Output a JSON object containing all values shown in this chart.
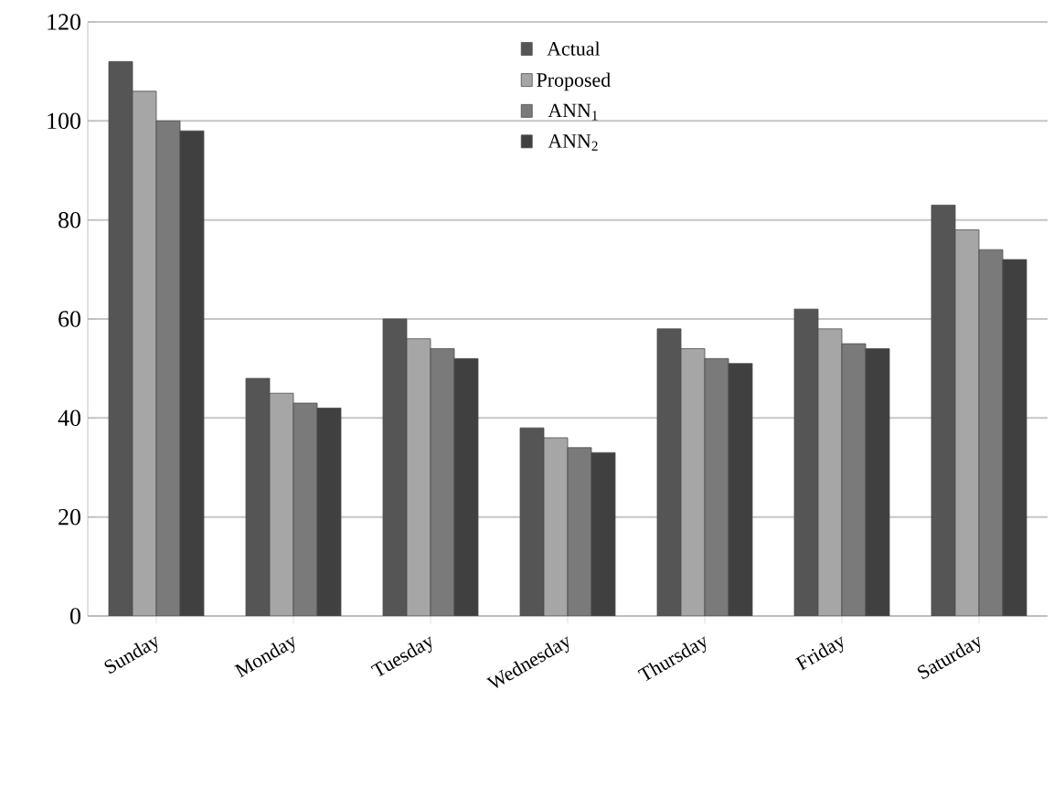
{
  "chart_data": {
    "type": "bar",
    "categories": [
      "Sunday",
      "Monday",
      "Tuesday",
      "Wednesday",
      "Thursday",
      "Friday",
      "Saturday"
    ],
    "series": [
      {
        "name": "Actual",
        "color": "#555555",
        "values": [
          112,
          48,
          60,
          38,
          58,
          62,
          83
        ]
      },
      {
        "name": "Proposed",
        "color": "#a6a6a6",
        "values": [
          106,
          45,
          56,
          36,
          54,
          58,
          78
        ]
      },
      {
        "name": "ANN$_{1}$",
        "color": "#7a7a7a",
        "values": [
          100,
          43,
          54,
          34,
          52,
          55,
          74
        ]
      },
      {
        "name": "ANN$_{2}$",
        "color": "#404040",
        "values": [
          98,
          42,
          52,
          33,
          51,
          54,
          72
        ]
      }
    ],
    "ylim": [
      0,
      120
    ],
    "yticks": [
      0,
      20,
      40,
      60,
      80,
      100,
      120
    ],
    "grid": "y",
    "legend": "top"
  }
}
